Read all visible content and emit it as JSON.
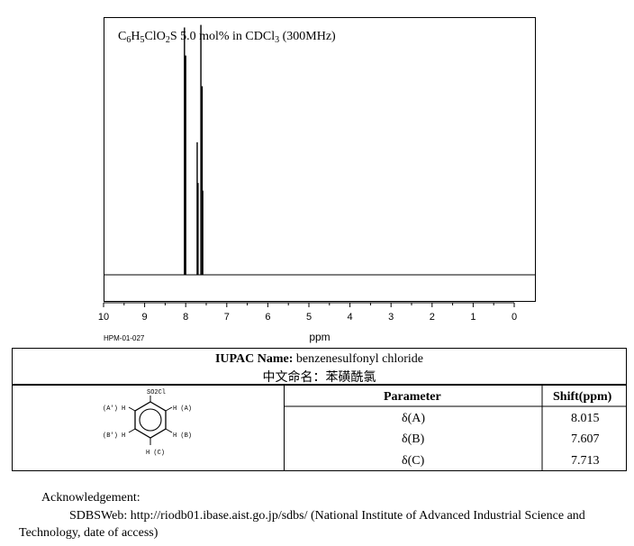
{
  "chart_data": {
    "type": "line",
    "title": "C6H5ClO2S 5.0 mol% in CDCl3 (300MHz)",
    "title_parts": {
      "p1": "C",
      "s1": "6",
      "p2": "H",
      "s2": "5",
      "p3": "ClO",
      "s3": "2",
      "p4": "S 5.0 mol% in CDCl",
      "s4": "3",
      "p5": " (300MHz)"
    },
    "xlabel": "ppm",
    "xlim": [
      10,
      0
    ],
    "x_ticks": [
      "10",
      "9",
      "8",
      "7",
      "6",
      "5",
      "4",
      "3",
      "2",
      "1",
      "0"
    ],
    "peaks": [
      {
        "ppm": 8.03,
        "height": 0.97
      },
      {
        "ppm": 8.0,
        "height": 0.86
      },
      {
        "ppm": 7.72,
        "height": 0.52
      },
      {
        "ppm": 7.7,
        "height": 0.36
      },
      {
        "ppm": 7.63,
        "height": 0.98
      },
      {
        "ppm": 7.6,
        "height": 0.74
      },
      {
        "ppm": 7.585,
        "height": 0.33
      }
    ],
    "grid": false,
    "code": "HPM-01-027"
  },
  "iupac": {
    "label": "IUPAC Name:",
    "name": " benzenesulfonyl chloride",
    "cn_label": "中文命名：",
    "cn_name": "苯磺酰氯"
  },
  "structure": {
    "top": "SO2Cl",
    "left_top": "(A') H",
    "right_top": "H (A)",
    "left_bottom": "(B') H",
    "right_bottom": "H (B)",
    "bottom": "H (C)"
  },
  "shifts": {
    "param_header": "Parameter",
    "shift_header": "Shift(ppm)",
    "rows": [
      {
        "param": "δ(A)",
        "shift": "8.015"
      },
      {
        "param": "δ(B)",
        "shift": "7.607"
      },
      {
        "param": "δ(C)",
        "shift": "7.713"
      }
    ]
  },
  "acknowledgement": {
    "heading": "Acknowledgement:",
    "line1": "SDBSWeb: http://riodb01.ibase.aist.go.jp/sdbs/ (National Institute of Advanced Industrial Science and",
    "line2": "Technology, date of access)"
  }
}
